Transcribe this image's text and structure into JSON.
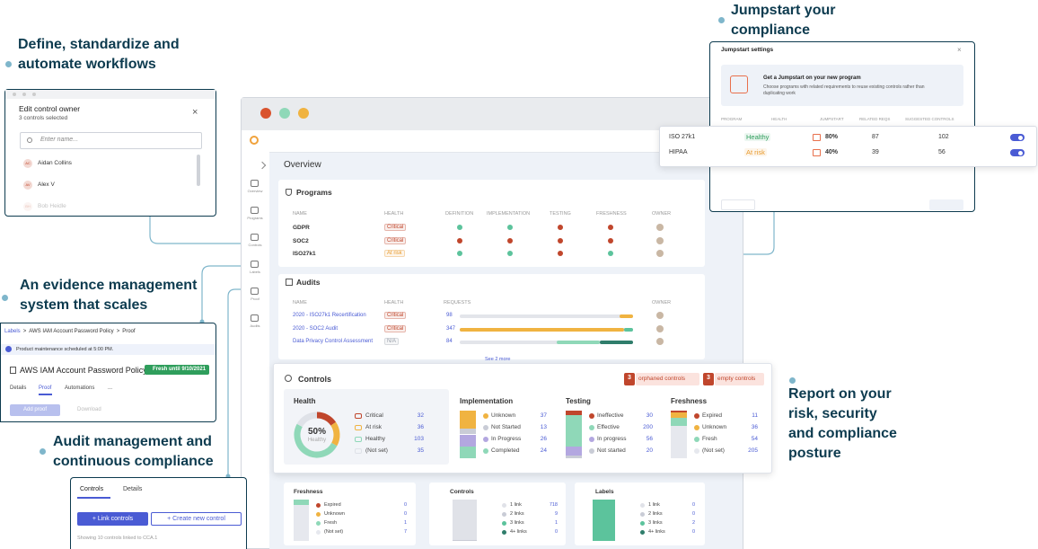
{
  "callouts": [
    [
      "Define, standardize and",
      "automate workflows"
    ],
    [
      "An evidence management",
      "system that scales"
    ],
    [
      "Audit management and",
      "continuous compliance"
    ],
    [
      "Jumpstart your",
      "compliance"
    ],
    [
      "Report on your",
      "risk, security",
      "and compliance",
      "posture"
    ]
  ],
  "main": {
    "sidebar": [
      "Overview",
      "Programs",
      "Controls",
      "Labels",
      "Proof",
      "Audits"
    ],
    "title": "Overview",
    "programs": {
      "title": "Programs",
      "columns": [
        "NAME",
        "HEALTH",
        "DEFINITION",
        "IMPLEMENTATION",
        "TESTING",
        "FRESHNESS",
        "OWNER"
      ],
      "rows": [
        {
          "name": "GDPR",
          "health": "Critical",
          "health_color": "#c0462c",
          "statuses": [
            "#5cc39c",
            "#5cc39c",
            "#c0462c",
            "#c0462c"
          ]
        },
        {
          "name": "SOC2",
          "health": "Critical",
          "health_color": "#c0462c",
          "statuses": [
            "#c0462c",
            "#c0462c",
            "#c0462c",
            "#c0462c"
          ]
        },
        {
          "name": "ISO27k1",
          "health": "At risk",
          "health_color": "#e89a2c",
          "statuses": [
            "#5cc39c",
            "#5cc39c",
            "#c0462c",
            "#5cc39c"
          ]
        }
      ]
    },
    "audits": {
      "title": "Audits",
      "columns": [
        "NAME",
        "HEALTH",
        "REQUESTS",
        "OWNER"
      ],
      "rows": [
        {
          "name": "2020 - ISO27k1 Recertification",
          "health": "Critical",
          "health_color": "#c0462c",
          "requests": 98
        },
        {
          "name": "2020 - SOC2 Audit",
          "health": "Critical",
          "health_color": "#c0462c",
          "requests": 347
        },
        {
          "name": "Data Privacy Control Assessment",
          "health": "N/A",
          "health_color": "#9aa0ab",
          "requests": 84
        }
      ],
      "more": "See 2 more"
    },
    "controls": {
      "title": "Controls",
      "badges": [
        {
          "count": 3,
          "label": "orphaned controls"
        },
        {
          "count": 3,
          "label": "empty controls"
        }
      ],
      "health": {
        "title": "Health",
        "center": "50%",
        "center_label": "Healthy",
        "items": [
          {
            "label": "Critical",
            "value": 32,
            "color": "#c0462c"
          },
          {
            "label": "At risk",
            "value": 36,
            "color": "#f0b341"
          },
          {
            "label": "Healthy",
            "value": 103,
            "color": "#8fd8b8"
          },
          {
            "label": "(Not set)",
            "value": 35,
            "color": "#dfe2e8"
          }
        ]
      },
      "groups": [
        {
          "title": "Implementation",
          "items": [
            {
              "label": "Unknown",
              "value": 37,
              "color": "#f0b341"
            },
            {
              "label": "Not Started",
              "value": 13,
              "color": "#c9ccd6"
            },
            {
              "label": "In Progress",
              "value": 26,
              "color": "#b3a7e0"
            },
            {
              "label": "Completed",
              "value": 24,
              "color": "#8fd8b8"
            }
          ]
        },
        {
          "title": "Testing",
          "items": [
            {
              "label": "Ineffective",
              "value": 30,
              "color": "#c0462c"
            },
            {
              "label": "Effective",
              "value": 200,
              "color": "#8fd8b8"
            },
            {
              "label": "In progress",
              "value": 56,
              "color": "#b3a7e0"
            },
            {
              "label": "Not started",
              "value": 20,
              "color": "#c9ccd6"
            }
          ]
        },
        {
          "title": "Freshness",
          "items": [
            {
              "label": "Expired",
              "value": 11,
              "color": "#c0462c"
            },
            {
              "label": "Unknown",
              "value": 36,
              "color": "#f0b341"
            },
            {
              "label": "Fresh",
              "value": 54,
              "color": "#8fd8b8"
            },
            {
              "label": "(Not set)",
              "value": 205,
              "color": "#e6e8ee"
            }
          ]
        }
      ]
    },
    "lower": [
      {
        "title": "Freshness",
        "items": [
          {
            "label": "Expired",
            "value": 0,
            "color": "#c0462c"
          },
          {
            "label": "Unknown",
            "value": 0,
            "color": "#f0b341"
          },
          {
            "label": "Fresh",
            "value": 1,
            "color": "#8fd8b8"
          },
          {
            "label": "(Not set)",
            "value": 7,
            "color": "#e6e8ee"
          }
        ]
      },
      {
        "title": "Controls",
        "items": [
          {
            "label": "1 link",
            "value": 718,
            "color": "#e0e2e8"
          },
          {
            "label": "2 links",
            "value": 9,
            "color": "#c9ccd6"
          },
          {
            "label": "3 links",
            "value": 1,
            "color": "#5cc39c"
          },
          {
            "label": "4+ links",
            "value": 0,
            "color": "#2f7d6b"
          }
        ]
      },
      {
        "title": "Labels",
        "items": [
          {
            "label": "1 link",
            "value": 0,
            "color": "#e0e2e8"
          },
          {
            "label": "2 links",
            "value": 0,
            "color": "#c9ccd6"
          },
          {
            "label": "3 links",
            "value": 2,
            "color": "#5cc39c"
          },
          {
            "label": "4+ links",
            "value": 0,
            "color": "#2f7d6b"
          }
        ]
      }
    ]
  },
  "owner_window": {
    "title": "Edit control owner",
    "subtitle": "3 controls selected",
    "close": "×",
    "placeholder": "Enter name...",
    "people": [
      {
        "initials": "AC",
        "name": "Aidan Collins"
      },
      {
        "initials": "AV",
        "name": "Alex V"
      },
      {
        "initials": "BH",
        "name": "Bob Heidle"
      }
    ]
  },
  "evidence_window": {
    "breadcrumb": [
      "Labels",
      "AWS IAM Account Password Policy",
      "Proof"
    ],
    "separator": ">",
    "notice": "Product maintenance scheduled at 5:00 PM.",
    "title": "AWS IAM Account Password Policy",
    "badge": "Fresh until 9/10/2021",
    "tabs": [
      "Details",
      "Proof",
      "Automations",
      "..."
    ],
    "buttons": [
      "Add proof",
      "Download"
    ]
  },
  "controls_window": {
    "tabs": [
      "Controls",
      "Details"
    ],
    "buttons": [
      "+ Link controls",
      "+ Create new control"
    ],
    "footer": "Showing 10 controls linked to CCA.1"
  },
  "jumpstart_window": {
    "title": "Jumpstart settings",
    "close": "×",
    "heading": "Get a Jumpstart on your new program",
    "description": "Choose programs with related requirements to reuse existing controls rather than duplicating work",
    "columns": [
      "PROGRAM",
      "HEALTH",
      "JUMPSTART",
      "RELATED REQS",
      "SUGGESTED CONTROLS"
    ],
    "rows": [
      {
        "program": "ISO 27k1",
        "health": "Healthy",
        "health_color": "#2f9e5c",
        "jumpstart": "80%",
        "related": 87,
        "suggested": 102
      },
      {
        "program": "HIPAA",
        "health": "At risk",
        "health_color": "#e89a2c",
        "jumpstart": "40%",
        "related": 39,
        "suggested": 56
      }
    ]
  }
}
